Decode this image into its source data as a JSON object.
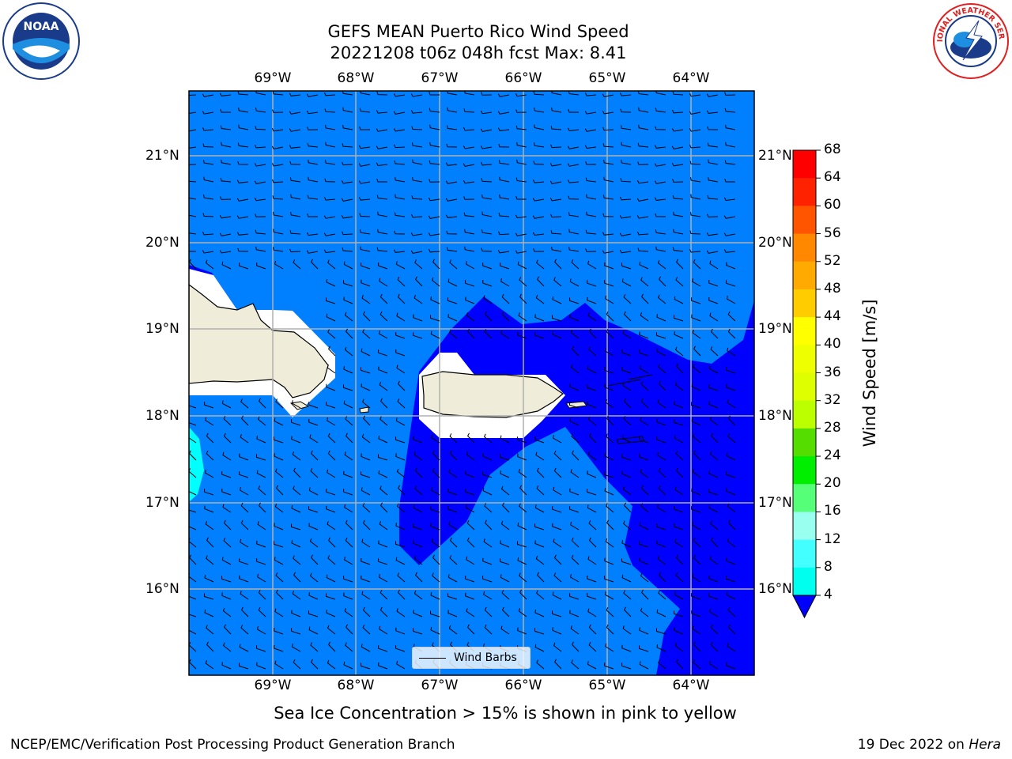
{
  "header": {
    "title_line1": "GEFS MEAN Puerto Rico Wind Speed",
    "title_line2": "20221208 t06z 048h fcst   Max: 8.41"
  },
  "logos": {
    "noaa_text": "NOAA",
    "nws_text": "NATIONAL WEATHER SERVICE"
  },
  "map": {
    "lon_labels": [
      "69°W",
      "68°W",
      "67°W",
      "66°W",
      "65°W",
      "64°W"
    ],
    "lat_labels": [
      "21°N",
      "20°N",
      "19°N",
      "18°N",
      "17°N",
      "16°N"
    ],
    "legend_label": "Wind Barbs",
    "colors": {
      "ocean_4_8": "#0080ff",
      "ocean_below_4": "#0000ff",
      "ocean_8_12": "#00ffff",
      "land": "#efedd9",
      "grid": "#b0b0b0"
    }
  },
  "colorbar": {
    "label": "Wind Speed [m/s]",
    "ticks": [
      "68",
      "64",
      "60",
      "56",
      "52",
      "48",
      "44",
      "40",
      "36",
      "32",
      "28",
      "24",
      "20",
      "16",
      "12",
      "8",
      "4"
    ],
    "colors": [
      "#ff0000",
      "#ff2200",
      "#ff5500",
      "#ff8800",
      "#ffaa00",
      "#ffcc00",
      "#ffff00",
      "#eeff00",
      "#ddff00",
      "#bbff00",
      "#55dd00",
      "#00ee00",
      "#55ff77",
      "#99ffee",
      "#44ffff",
      "#00ffee",
      "#0080ff"
    ],
    "extend_color": "#0000ff"
  },
  "caption": "Sea Ice Concentration > 15% is shown in pink to yellow",
  "footer": {
    "left": "NCEP/EMC/Verification Post Processing Product Generation Branch",
    "right_date": "19 Dec 2022 on ",
    "right_machine": "Hera"
  }
}
